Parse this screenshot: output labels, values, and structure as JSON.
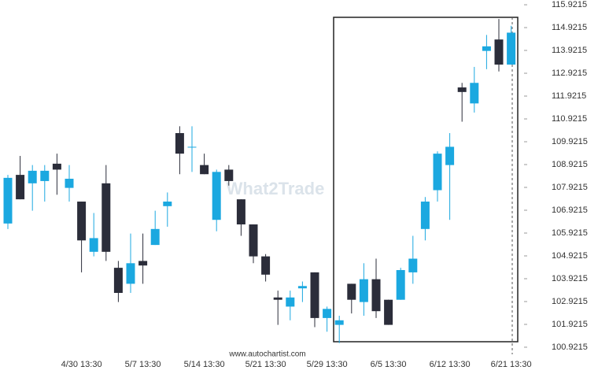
{
  "chart_data": {
    "type": "candlestick",
    "watermark": "What2Trade",
    "source": "www.autochartist.com",
    "categories": [
      null,
      null,
      null,
      null,
      null,
      null,
      "4/30 13:30",
      null,
      null,
      null,
      null,
      "5/7 13:30",
      null,
      null,
      null,
      null,
      "5/14 13:30",
      null,
      null,
      null,
      null,
      "5/21 13:30",
      null,
      null,
      null,
      null,
      "5/29 13:30",
      null,
      null,
      null,
      null,
      "6/5 13:30",
      null,
      null,
      null,
      null,
      "6/12 13:30",
      null,
      null,
      null,
      null,
      "6/21 13:30"
    ],
    "open": [
      106.34,
      108.47,
      108.1,
      108.2,
      108.96,
      107.9,
      107.3,
      105.1,
      108.1,
      104.4,
      103.7,
      104.7,
      105.4,
      107.1,
      110.3,
      109.7,
      108.9,
      106.5,
      108.7,
      107.4,
      106.3,
      104.9,
      103.1,
      102.7,
      103.5,
      104.2,
      102.2,
      101.9,
      103.7,
      102.9,
      103.9,
      103.0,
      103.0,
      104.2,
      106.1,
      107.8,
      108.9,
      112.3,
      111.6,
      113.9,
      114.4,
      113.3
    ],
    "high": [
      108.47,
      109.3,
      108.9,
      108.9,
      109.4,
      108.9,
      107.3,
      106.8,
      108.9,
      104.7,
      105.9,
      105.9,
      106.9,
      107.7,
      110.6,
      110.6,
      109.4,
      108.7,
      108.9,
      107.4,
      106.3,
      105.0,
      103.4,
      103.4,
      103.8,
      104.2,
      102.7,
      102.3,
      103.7,
      104.6,
      104.8,
      103.0,
      104.4,
      105.8,
      107.5,
      109.5,
      110.3,
      112.5,
      113.2,
      114.6,
      115.3,
      115.0
    ],
    "low": [
      106.1,
      107.4,
      106.9,
      107.3,
      107.6,
      107.3,
      104.2,
      104.9,
      104.7,
      102.9,
      103.3,
      103.7,
      105.4,
      106.2,
      108.5,
      108.6,
      108.5,
      106.0,
      108.0,
      105.8,
      104.6,
      103.8,
      101.9,
      102.1,
      102.9,
      101.8,
      101.6,
      101.1,
      102.4,
      102.3,
      102.2,
      101.9,
      103.0,
      103.7,
      105.6,
      107.3,
      106.5,
      110.8,
      111.2,
      113.1,
      113.0,
      113.3
    ],
    "close": [
      108.34,
      107.4,
      108.65,
      108.65,
      108.7,
      108.3,
      105.6,
      105.7,
      105.1,
      103.3,
      104.6,
      104.5,
      106.1,
      107.3,
      109.4,
      109.7,
      108.5,
      108.6,
      108.2,
      106.3,
      104.9,
      104.1,
      103.0,
      103.1,
      103.6,
      102.2,
      102.6,
      102.1,
      103.0,
      103.9,
      102.5,
      101.9,
      104.3,
      104.8,
      107.3,
      109.4,
      109.7,
      112.1,
      112.5,
      114.1,
      113.3,
      114.7
    ],
    "up_color": "#1ba8e0",
    "down_color": "#2b2d3a",
    "ylim": [
      100.61,
      116.13
    ],
    "yticks": [
      115.9215,
      114.9215,
      113.9215,
      112.9215,
      111.9215,
      110.9215,
      109.9215,
      108.9215,
      107.9215,
      106.9215,
      105.9215,
      104.9215,
      103.9215,
      102.9215,
      101.9215,
      100.9215
    ]
  }
}
